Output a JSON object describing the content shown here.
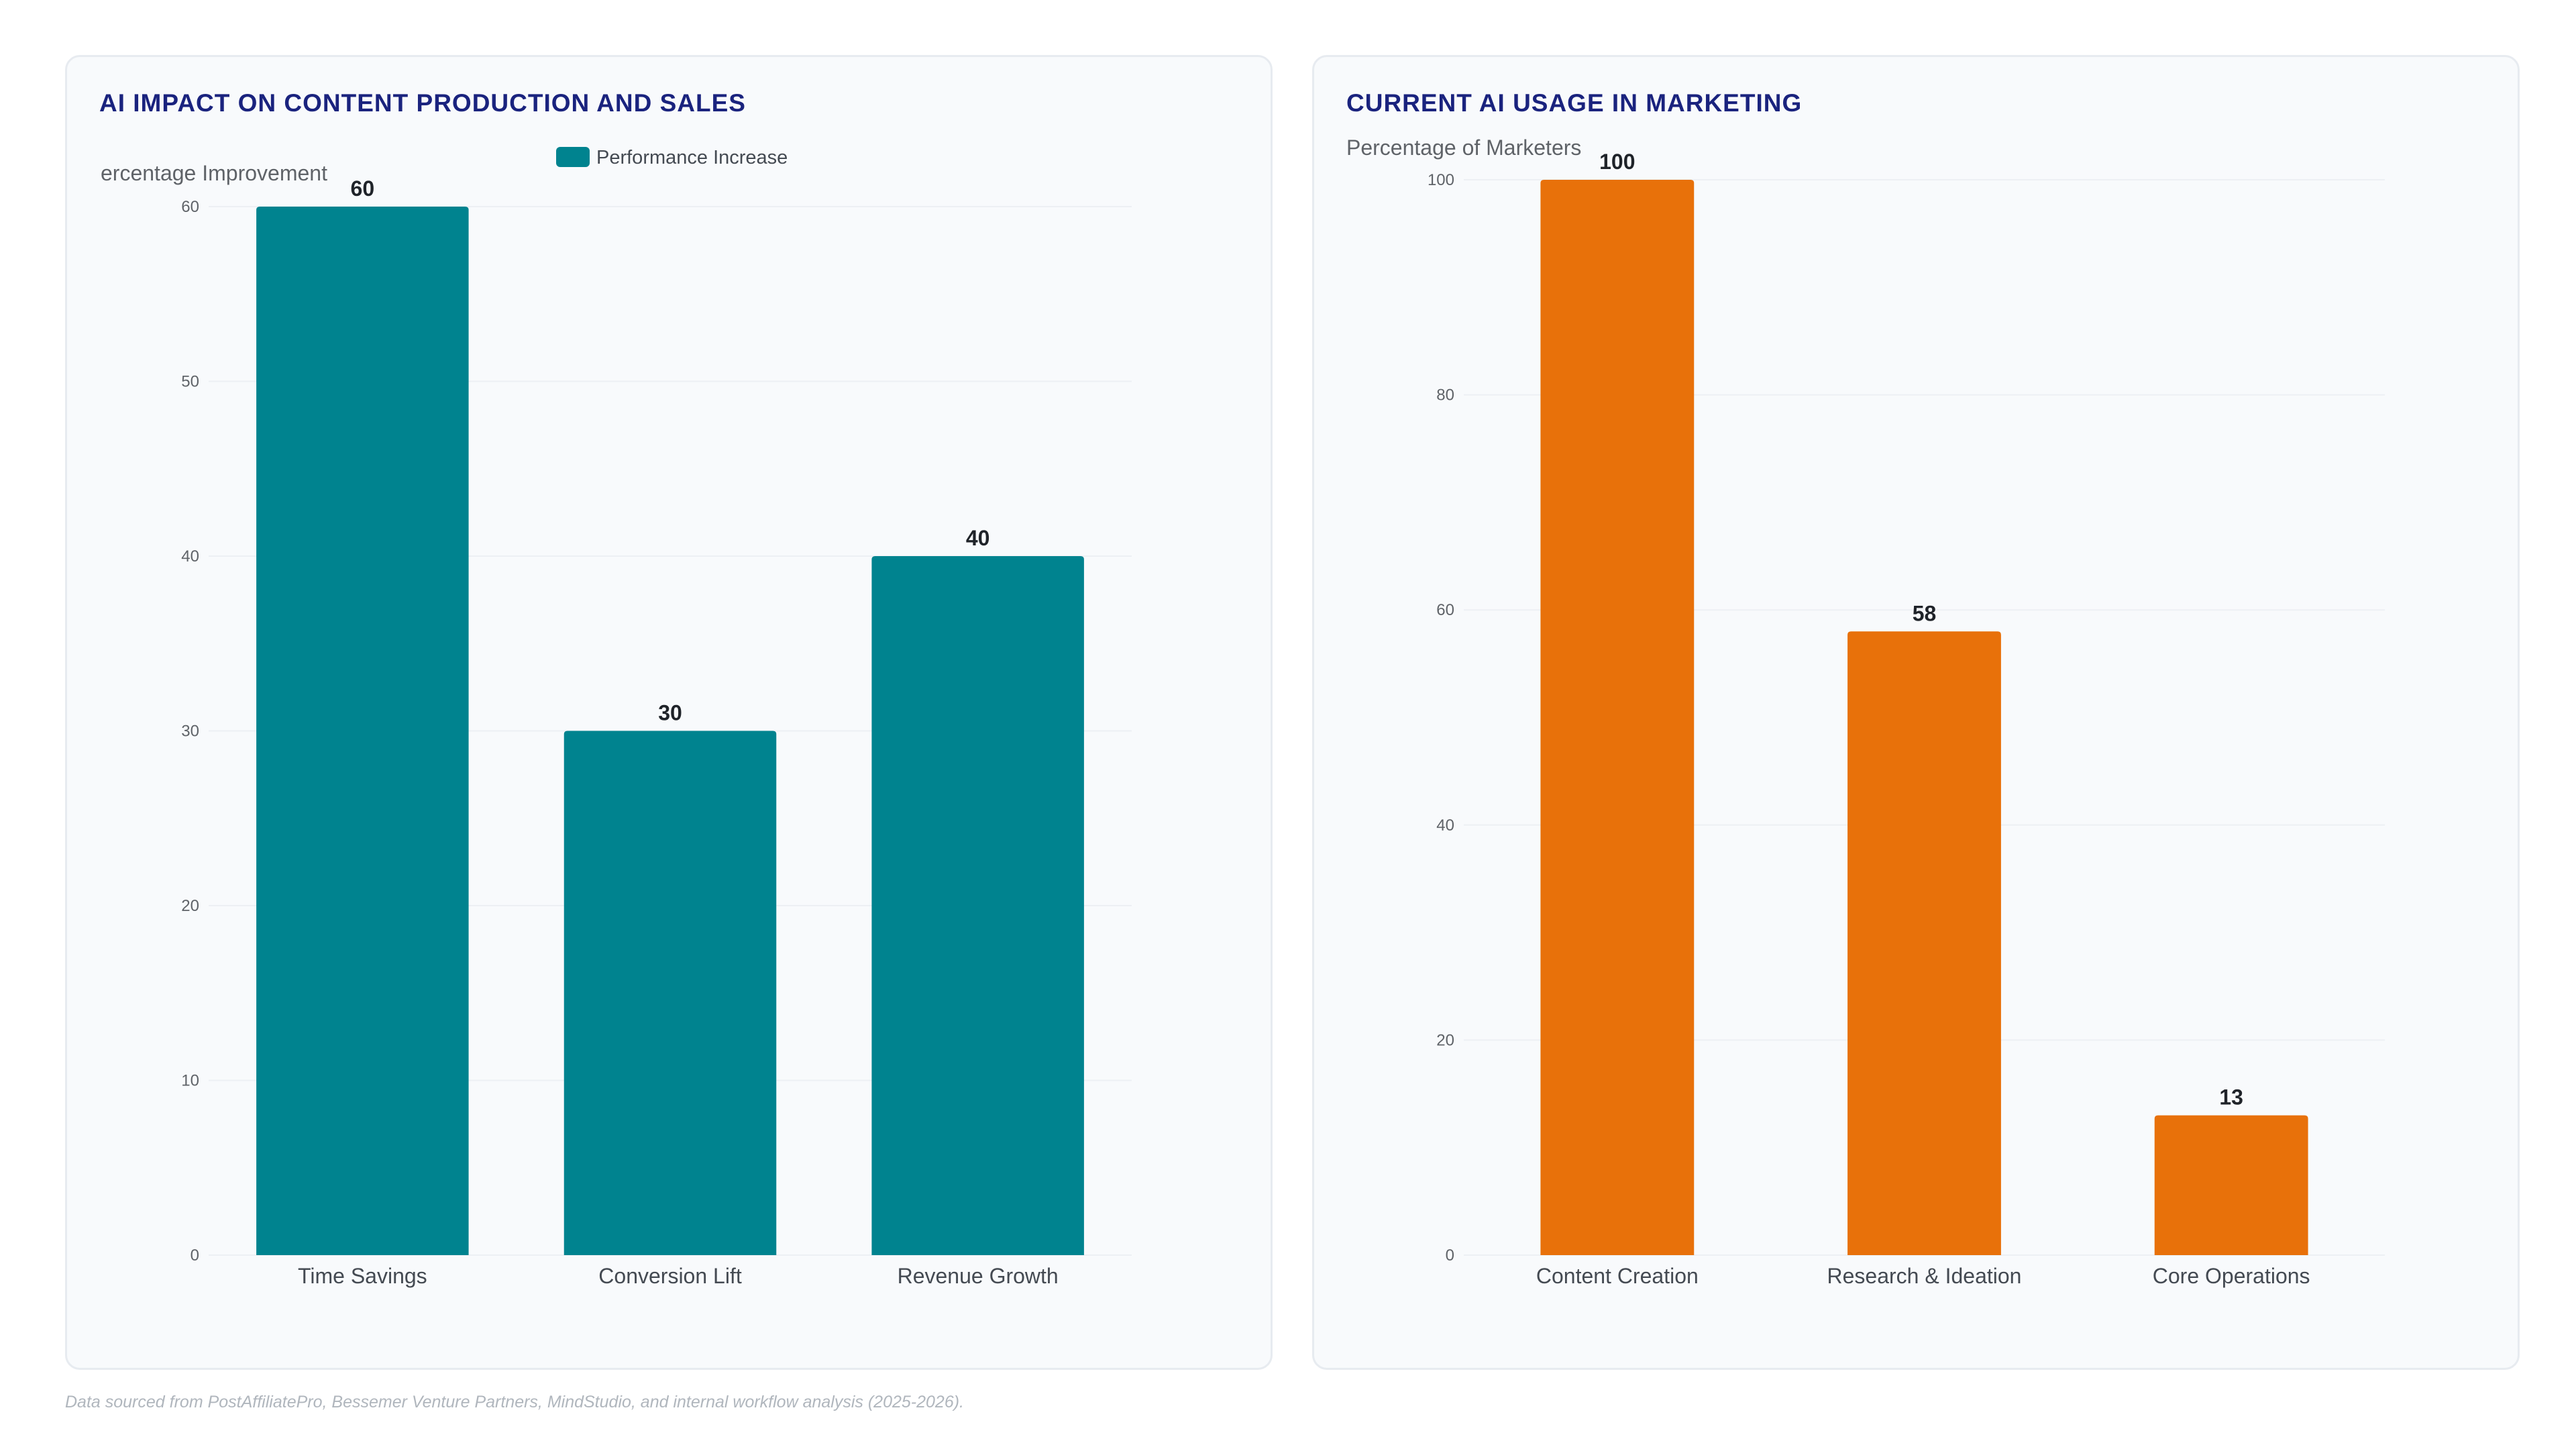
{
  "chart_data": [
    {
      "type": "bar",
      "title": "AI IMPACT ON CONTENT PRODUCTION AND SALES",
      "ylabel": "ercentage Improvement",
      "xlabel": "",
      "legend": {
        "position": "top-center",
        "entries": [
          "Performance Increase"
        ]
      },
      "categories": [
        "Time Savings",
        "Conversion Lift",
        "Revenue Growth"
      ],
      "series": [
        {
          "name": "Performance Increase",
          "values": [
            60,
            30,
            40
          ],
          "color": "#00838f"
        }
      ],
      "ylim": [
        0,
        60
      ],
      "yticks": [
        0,
        10,
        20,
        30,
        40,
        50,
        60
      ],
      "grid": true
    },
    {
      "type": "bar",
      "title": "CURRENT AI USAGE IN MARKETING",
      "ylabel": "Percentage of Marketers",
      "xlabel": "",
      "categories": [
        "Content Creation",
        "Research & Ideation",
        "Core Operations"
      ],
      "series": [
        {
          "values": [
            100,
            58,
            13
          ],
          "color": "#e8710a"
        }
      ],
      "ylim": [
        0,
        100
      ],
      "yticks": [
        0,
        20,
        40,
        60,
        80,
        100
      ],
      "grid": true
    }
  ],
  "footnote": "Data sourced from PostAffiliatePro, Bessemer Venture Partners, MindStudio, and internal workflow analysis (2025-2026)."
}
